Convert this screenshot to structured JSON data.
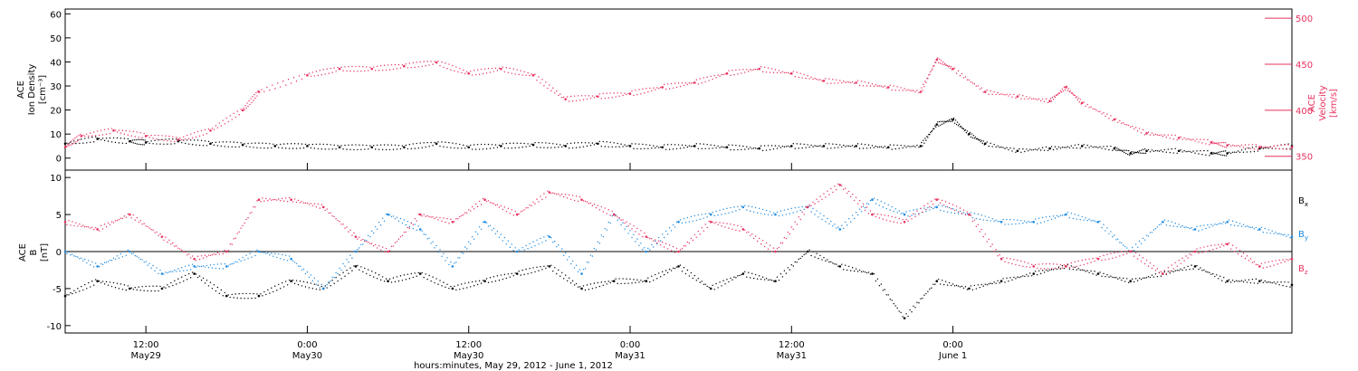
{
  "colors": {
    "black": "#000000",
    "magenta": "#e8315e",
    "blue": "#1f8be0"
  },
  "footer": {
    "xlabel": "hours:minutes, May 29, 2012 - June  1, 2012"
  },
  "chart_data": [
    {
      "type": "scatter",
      "panel": "top",
      "left_axis": {
        "label_lines": [
          "ACE",
          "Ion Density"
        ],
        "unit": "[cm⁻³]",
        "ylim": [
          -5,
          62
        ],
        "ticks": [
          0,
          10,
          20,
          30,
          40,
          50,
          60
        ]
      },
      "right_axis": {
        "label_lines": [
          "ACE",
          "Velocity"
        ],
        "unit": "[km/s]",
        "ylim": [
          335,
          510
        ],
        "ticks": [
          350,
          400,
          450,
          500
        ]
      },
      "xlim": [
        -0.25,
        3.55
      ],
      "series": [
        {
          "axis": "left",
          "color": "#000000",
          "x": [
            -0.25,
            -0.15,
            -0.05,
            0.0,
            0.1,
            0.2,
            0.3,
            0.4,
            0.5,
            0.6,
            0.7,
            0.8,
            0.9,
            1.0,
            1.1,
            1.2,
            1.3,
            1.4,
            1.5,
            1.6,
            1.7,
            1.8,
            1.9,
            2.0,
            2.1,
            2.2,
            2.3,
            2.4,
            2.45,
            2.5,
            2.55,
            2.6,
            2.7,
            2.8,
            2.9,
            3.0,
            3.05,
            3.1,
            3.2,
            3.3,
            3.35,
            3.45,
            3.55
          ],
          "y": [
            6,
            8,
            7,
            6.5,
            7,
            6,
            5.5,
            5,
            5,
            4.5,
            4.5,
            4.5,
            6,
            4.5,
            5,
            5.5,
            5,
            6,
            5,
            4.5,
            5,
            4.5,
            4,
            5,
            5,
            5,
            4.5,
            5,
            14,
            16,
            10,
            6,
            3,
            4,
            5,
            4,
            2,
            3,
            3,
            2,
            2,
            4,
            5
          ]
        },
        {
          "axis": "right",
          "color": "#e8315e",
          "x": [
            -0.25,
            -0.2,
            -0.1,
            0.0,
            0.1,
            0.2,
            0.3,
            0.35,
            0.5,
            0.6,
            0.7,
            0.8,
            0.9,
            1.0,
            1.1,
            1.2,
            1.3,
            1.4,
            1.5,
            1.6,
            1.7,
            1.8,
            1.9,
            2.0,
            2.1,
            2.2,
            2.3,
            2.4,
            2.45,
            2.5,
            2.6,
            2.7,
            2.8,
            2.85,
            2.9,
            3.0,
            3.1,
            3.2,
            3.3,
            3.35,
            3.45,
            3.55
          ],
          "y": [
            360,
            372,
            378,
            372,
            368,
            378,
            400,
            420,
            438,
            445,
            445,
            448,
            452,
            440,
            445,
            438,
            412,
            415,
            418,
            425,
            430,
            440,
            445,
            440,
            432,
            430,
            425,
            420,
            455,
            445,
            420,
            415,
            410,
            425,
            408,
            390,
            375,
            370,
            365,
            362,
            360,
            360
          ]
        }
      ]
    },
    {
      "type": "scatter",
      "panel": "bottom",
      "left_axis": {
        "label_lines": [
          "ACE",
          "B"
        ],
        "unit": "[nT]",
        "ylim": [
          -11,
          11
        ],
        "ticks": [
          -10,
          -5,
          0,
          5,
          10
        ]
      },
      "xlim": [
        -0.25,
        3.55
      ],
      "reference_line": 0,
      "legend": {
        "position": "right",
        "entries": [
          "B",
          "B",
          "B"
        ],
        "subscripts": [
          "x",
          "y",
          "z"
        ],
        "colors": [
          "#000000",
          "#1f8be0",
          "#e8315e"
        ]
      },
      "series": [
        {
          "color": "#000000",
          "x": [
            -0.25,
            -0.15,
            -0.05,
            0.05,
            0.15,
            0.25,
            0.35,
            0.45,
            0.55,
            0.65,
            0.75,
            0.85,
            0.95,
            1.05,
            1.15,
            1.25,
            1.35,
            1.45,
            1.55,
            1.65,
            1.75,
            1.85,
            1.95,
            2.05,
            2.15,
            2.25,
            2.35,
            2.45,
            2.55,
            2.65,
            2.75,
            2.85,
            2.95,
            3.05,
            3.15,
            3.25,
            3.35,
            3.45,
            3.55
          ],
          "y": [
            -6,
            -4,
            -5,
            -5,
            -3,
            -6,
            -6,
            -4,
            -5,
            -2,
            -4,
            -3,
            -5,
            -4,
            -3,
            -2,
            -5,
            -4,
            -4,
            -2,
            -5,
            -3,
            -4,
            0,
            -2,
            -3,
            -9,
            -4,
            -5,
            -4,
            -3,
            -2,
            -3,
            -4,
            -3,
            -2,
            -4,
            -4,
            -4.5
          ]
        },
        {
          "color": "#1f8be0",
          "x": [
            -0.25,
            -0.15,
            -0.05,
            0.05,
            0.15,
            0.25,
            0.35,
            0.45,
            0.55,
            0.65,
            0.75,
            0.85,
            0.95,
            1.05,
            1.15,
            1.25,
            1.35,
            1.45,
            1.55,
            1.65,
            1.75,
            1.85,
            1.95,
            2.05,
            2.15,
            2.25,
            2.35,
            2.45,
            2.55,
            2.65,
            2.75,
            2.85,
            2.95,
            3.05,
            3.15,
            3.25,
            3.35,
            3.45,
            3.55
          ],
          "y": [
            0,
            -2,
            0,
            -3,
            -2,
            -2,
            0,
            -1,
            -5,
            0,
            5,
            3,
            -2,
            4,
            0,
            2,
            -3,
            5,
            0,
            4,
            5,
            6,
            5,
            6,
            3,
            7,
            5,
            6,
            5,
            4,
            4,
            5,
            4,
            0,
            4,
            3,
            4,
            3,
            2
          ]
        },
        {
          "color": "#e8315e",
          "x": [
            -0.25,
            -0.15,
            -0.05,
            0.05,
            0.15,
            0.25,
            0.35,
            0.45,
            0.55,
            0.65,
            0.75,
            0.85,
            0.95,
            1.05,
            1.15,
            1.25,
            1.35,
            1.45,
            1.55,
            1.65,
            1.75,
            1.85,
            1.95,
            2.05,
            2.15,
            2.25,
            2.35,
            2.45,
            2.55,
            2.65,
            2.75,
            2.85,
            2.95,
            3.05,
            3.15,
            3.25,
            3.35,
            3.45,
            3.55
          ],
          "y": [
            4,
            3,
            5,
            2,
            -1,
            0,
            7,
            7,
            6,
            2,
            0,
            5,
            4,
            7,
            5,
            8,
            7,
            5,
            2,
            0,
            4,
            3,
            0,
            6,
            9,
            5,
            4,
            7,
            5,
            -1,
            -2,
            -2,
            -1,
            0,
            -3,
            0,
            1,
            -2,
            -1
          ]
        }
      ]
    }
  ],
  "xaxis": {
    "ticks": [
      {
        "x": 0.0,
        "time": "12:00",
        "date": "May29"
      },
      {
        "x": 0.5,
        "time": "0:00",
        "date": "May30"
      },
      {
        "x": 1.0,
        "time": "12:00",
        "date": "May30"
      },
      {
        "x": 1.5,
        "time": "0:00",
        "date": "May31"
      },
      {
        "x": 2.0,
        "time": "12:00",
        "date": "May31"
      },
      {
        "x": 2.5,
        "time": "0:00",
        "date": "June  1"
      }
    ]
  }
}
